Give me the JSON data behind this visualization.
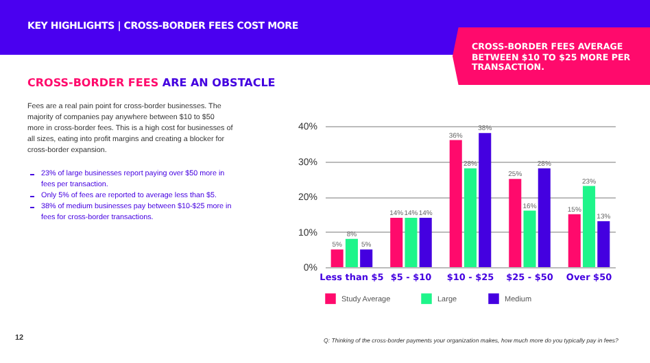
{
  "chart_data": {
    "type": "bar",
    "title": "KEY HIGHLIGHTS | CROSS-BORDER FEES COST MORE",
    "subtitle": "CROSS-BORDER FEES ARE AN OBSTACLE",
    "annotations": [
      "CROSS-BORDER FEES AVERAGE BETWEEN $10 TO $25 MORE PER TRANSACTION.",
      "Fees are a real pain point for cross-border businesses. The majority of companies pay anywhere between $10 to $50 more in cross-border fees. This is a high cost for businesses of all sizes, eating into profit margins and creating a blocker for cross-border expansion.",
      "23% of large businesses report paying over $50 more in fees per transaction.",
      "Only 5% of fees are reported to average less than $5.",
      "38% of medium businesses pay between $10-$25 more in fees for cross-border transactions.",
      "Q: Thinking of the cross-border payments your organization makes, how much more do you typically pay in fees?",
      "12"
    ],
    "categories": [
      "Less than $5",
      "$5 - $10",
      "$10 - $25",
      "$25 - $50",
      "Over $50"
    ],
    "series": [
      {
        "name": "Study Average",
        "color": "#ff0a6c",
        "values": [
          5,
          14,
          36,
          25,
          15
        ],
        "value_labels": [
          "5%",
          "14%",
          "36%",
          "25%",
          "15%"
        ]
      },
      {
        "name": "Large",
        "color": "#1ef58a",
        "values": [
          8,
          14,
          28,
          16,
          23
        ],
        "value_labels": [
          "8%",
          "14%",
          "28%",
          "16%",
          "23%"
        ]
      },
      {
        "name": "Medium",
        "color": "#4400e0",
        "values": [
          5,
          14,
          38,
          28,
          13
        ],
        "value_labels": [
          "5%",
          "14%",
          "38%",
          "28%",
          "13%"
        ]
      }
    ],
    "ylim": [
      0,
      40
    ],
    "yticks": [
      {
        "value": 0,
        "label": "0%"
      },
      {
        "value": 10,
        "label": "10%"
      },
      {
        "value": 20,
        "label": "20%"
      },
      {
        "value": 30,
        "label": "30%"
      },
      {
        "value": 40,
        "label": "40%"
      }
    ],
    "grid": "y",
    "legend": "bottom"
  }
}
